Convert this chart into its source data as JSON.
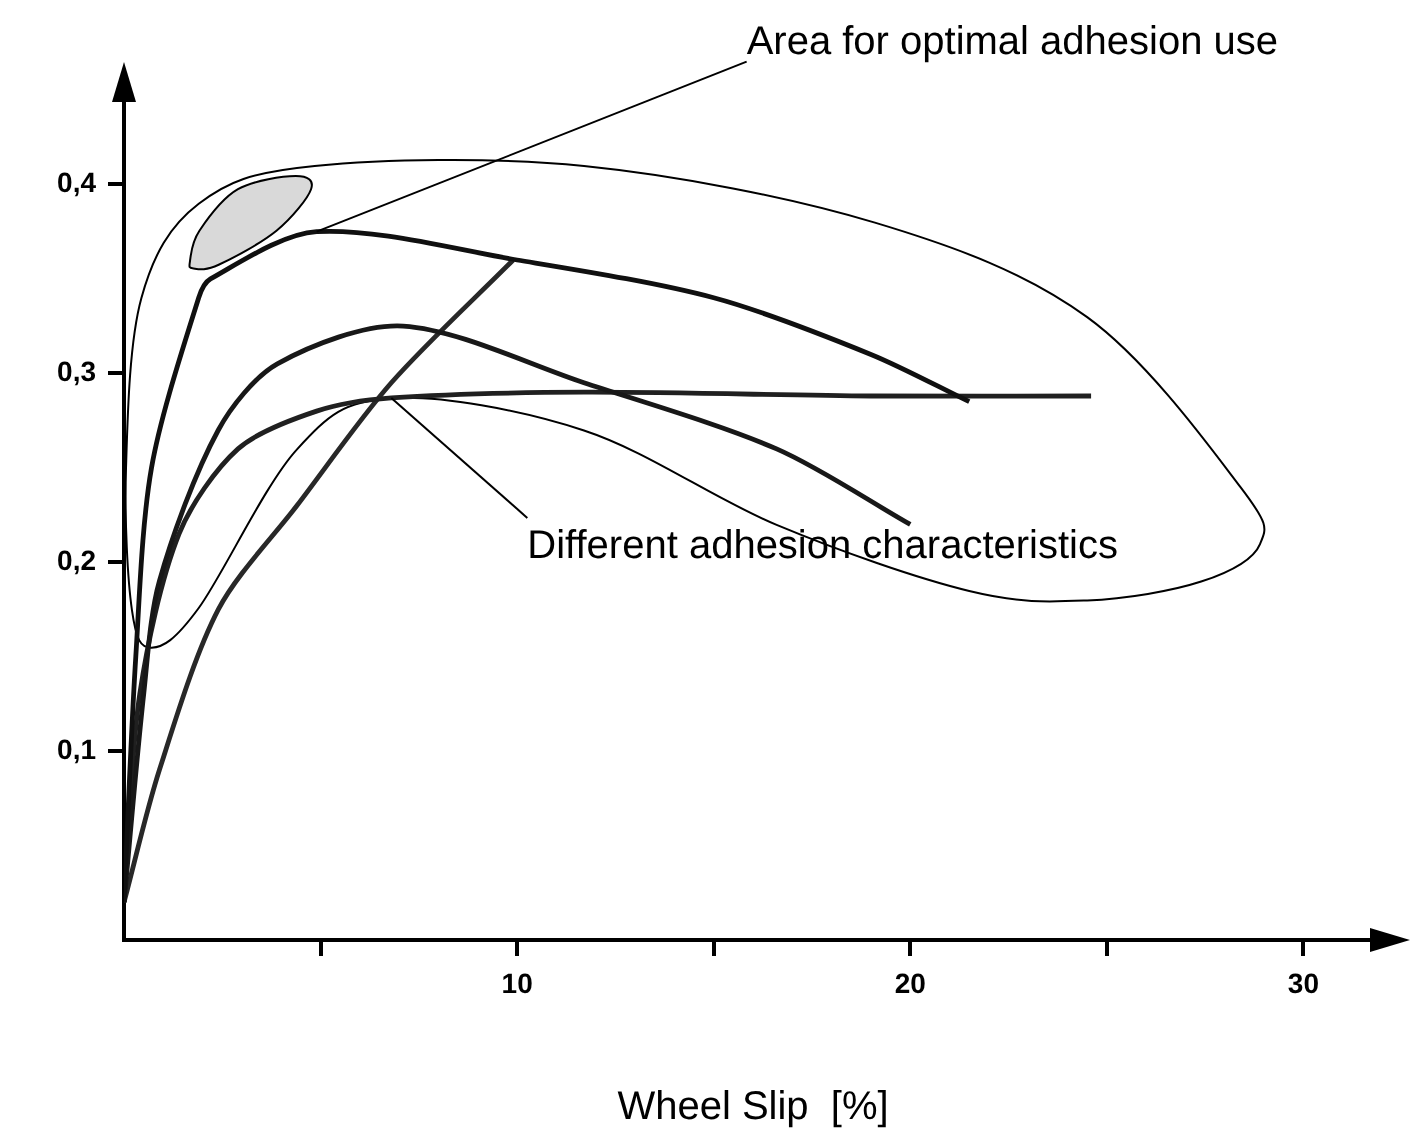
{
  "chart_data": {
    "type": "line",
    "xlabel": "Wheel Slip  [%]",
    "xlim": [
      0,
      32
    ],
    "ylim": [
      0,
      0.45
    ],
    "xticks": [
      {
        "value": 5,
        "label": null
      },
      10,
      {
        "value": 15,
        "label": null
      },
      20,
      {
        "value": 25,
        "label": null
      },
      30
    ],
    "yticks": [
      {
        "value": 0.1,
        "label": "0,1"
      },
      {
        "value": 0.2,
        "label": "0,2"
      },
      {
        "value": 0.3,
        "label": "0,3"
      },
      {
        "value": 0.4,
        "label": "0,4"
      }
    ],
    "grid": false,
    "legend": false,
    "marker": "none",
    "line_style": "solid",
    "series": [
      {
        "color": "#101010",
        "x": [
          0,
          0.3,
          0.7,
          1.9,
          2.2,
          4.9,
          10,
          15,
          19,
          21.5
        ],
        "values": [
          0.02,
          0.15,
          0.25,
          0.34,
          0.35,
          0.375,
          0.36,
          0.34,
          0.31,
          0.285
        ]
      },
      {
        "color": "#181818",
        "x": [
          0,
          0.5,
          0.9,
          2.4,
          3.9,
          7.1,
          11.7,
          16.6,
          20
        ],
        "values": [
          0.02,
          0.13,
          0.19,
          0.27,
          0.305,
          0.325,
          0.295,
          0.26,
          0.22
        ]
      },
      {
        "color": "#202020",
        "x": [
          0,
          0.4,
          1.4,
          2.9,
          4.9,
          6.8,
          11.7,
          19,
          24.6
        ],
        "values": [
          0.02,
          0.13,
          0.215,
          0.26,
          0.28,
          0.287,
          0.29,
          0.288,
          0.288
        ]
      },
      {
        "color": "#282828",
        "x": [
          0,
          0.9,
          2.4,
          4.4,
          6.8,
          9.9
        ],
        "values": [
          0.02,
          0.09,
          0.175,
          0.23,
          0.295,
          0.36
        ]
      }
    ],
    "annotations": [
      {
        "text": "Area for optimal adhesion use",
        "x": 4.9,
        "y": 0.375
      },
      {
        "text": "Different adhesion characteristics",
        "x": 6.8,
        "y": 0.287
      }
    ]
  }
}
